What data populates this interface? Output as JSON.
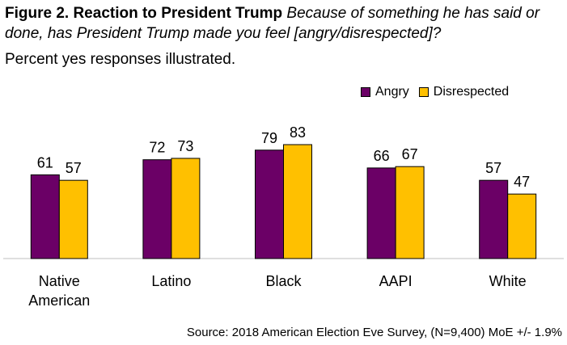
{
  "header": {
    "title_bold": "Figure 2. Reaction to President Trump",
    "title_italic": "Because of something he has said or done, has President Trump made you feel [angry/disrespected]?",
    "subtitle": "Percent yes responses illustrated."
  },
  "footer": {
    "source": "Source: 2018 American Election Eve Survey, (N=9,400) MoE +/- 1.9%"
  },
  "colors": {
    "angry": "#6B0066",
    "disrespected": "#FFC000"
  },
  "chart_data": {
    "type": "bar",
    "categories": [
      "Native American",
      "Latino",
      "Black",
      "AAPI",
      "White"
    ],
    "category_lines": [
      [
        "Native",
        "American"
      ],
      [
        "Latino"
      ],
      [
        "Black"
      ],
      [
        "AAPI"
      ],
      [
        "White"
      ]
    ],
    "series": [
      {
        "name": "Angry",
        "values": [
          61,
          72,
          79,
          66,
          57
        ]
      },
      {
        "name": "Disrespected",
        "values": [
          57,
          73,
          83,
          67,
          47
        ]
      }
    ],
    "ylim": [
      0,
      100
    ],
    "data_labels": true,
    "grid": false,
    "legend": "top-right"
  }
}
